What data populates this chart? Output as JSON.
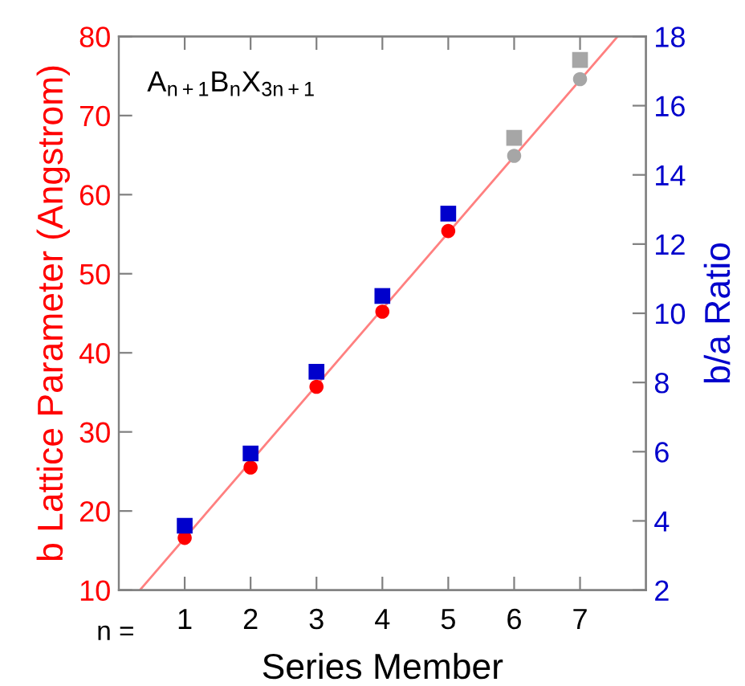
{
  "chart_data": {
    "type": "scatter",
    "xlabel": "Series Member",
    "ylabel": "b Lattice Parameter (Angstrom)",
    "y2label": "b/a Ratio",
    "annotations": [
      "A$_{n+1}$B$_{n}$X$_{3n+1}$",
      "n ="
    ],
    "xlim": [
      0,
      8
    ],
    "xticks": [
      1,
      2,
      3,
      4,
      5,
      6,
      7
    ],
    "ylim": [
      10,
      80
    ],
    "yticks": [
      10,
      20,
      30,
      40,
      50,
      60,
      70,
      80
    ],
    "y2lim": [
      2,
      18
    ],
    "y2ticks": [
      2,
      4,
      6,
      8,
      10,
      12,
      14,
      16,
      18
    ],
    "grid": false,
    "legend": false,
    "series": [
      {
        "type": "line",
        "color": "#ff8080",
        "x": [
          0.32,
          7.57
        ],
        "values": [
          10,
          80
        ],
        "marker": "none"
      },
      {
        "color": "#ff0000",
        "marker": "circle",
        "x": [
          1,
          2,
          3,
          4,
          5
        ],
        "values": [
          16.6,
          25.5,
          35.7,
          45.2,
          55.4
        ]
      },
      {
        "color": "#a6a6a6",
        "marker": "circle",
        "x": [
          6,
          7
        ],
        "values": [
          64.9,
          74.6
        ]
      },
      {
        "color": "#0000cc",
        "marker": "square",
        "axis": "y2",
        "x": [
          1,
          2,
          3,
          4,
          5
        ],
        "values": [
          3.86,
          5.95,
          8.31,
          10.5,
          12.88
        ]
      },
      {
        "color": "#a6a6a6",
        "marker": "square",
        "axis": "y2",
        "x": [
          6,
          7
        ],
        "values": [
          15.07,
          17.32
        ]
      }
    ]
  }
}
